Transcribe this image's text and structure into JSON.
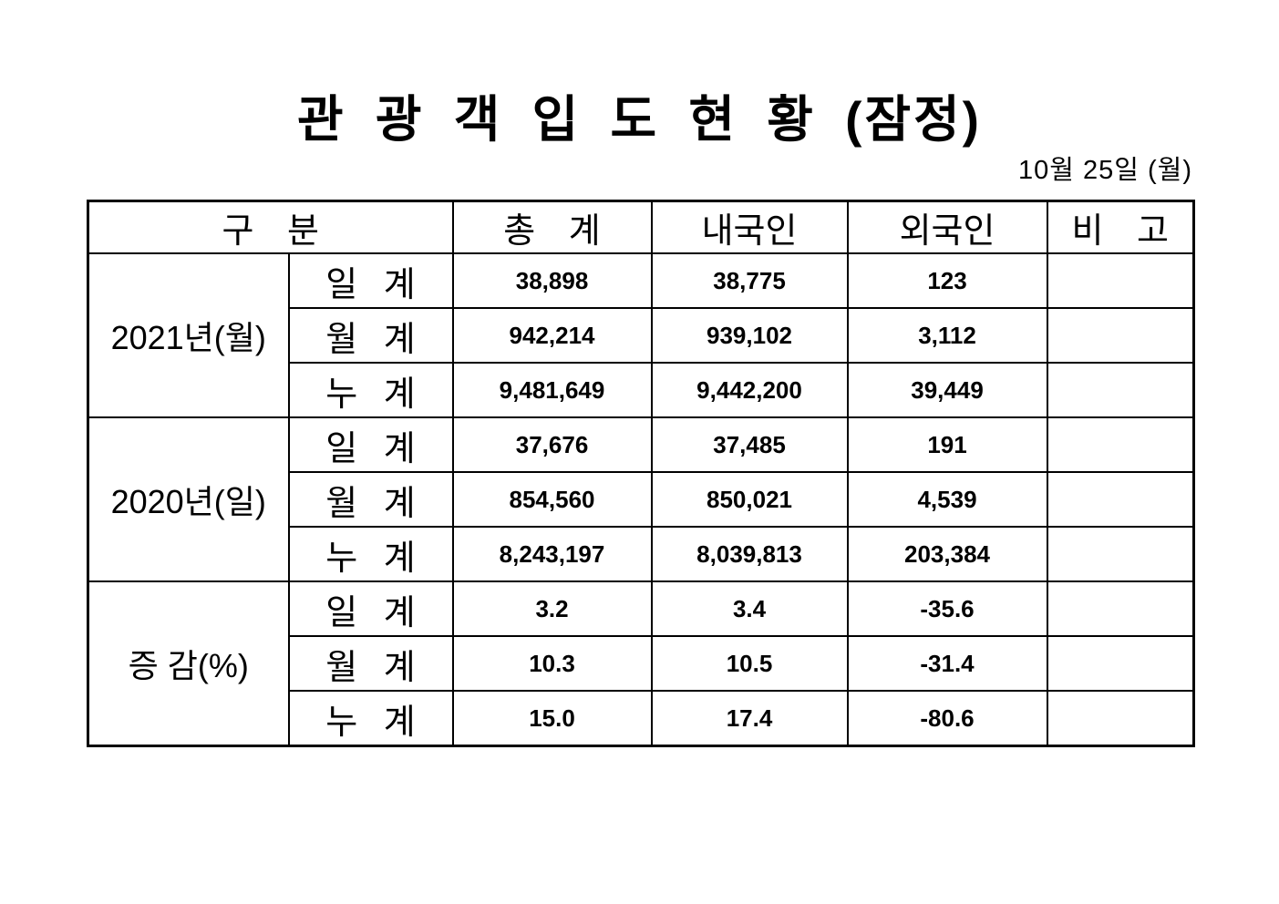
{
  "title": "관 광 객 입 도 현 황 (잠정)",
  "date": "10월 25일 (월)",
  "table": {
    "headers": [
      "구 분",
      "총 계",
      "내국인",
      "외국인",
      "비 고"
    ],
    "groups": [
      {
        "label": "2021년(월)",
        "rows": [
          {
            "label": "일 계",
            "values": [
              "38,898",
              "38,775",
              "123",
              ""
            ]
          },
          {
            "label": "월 계",
            "values": [
              "942,214",
              "939,102",
              "3,112",
              ""
            ]
          },
          {
            "label": "누 계",
            "values": [
              "9,481,649",
              "9,442,200",
              "39,449",
              ""
            ]
          }
        ]
      },
      {
        "label": "2020년(일)",
        "rows": [
          {
            "label": "일 계",
            "values": [
              "37,676",
              "37,485",
              "191",
              ""
            ]
          },
          {
            "label": "월 계",
            "values": [
              "854,560",
              "850,021",
              "4,539",
              ""
            ]
          },
          {
            "label": "누 계",
            "values": [
              "8,243,197",
              "8,039,813",
              "203,384",
              ""
            ]
          }
        ]
      },
      {
        "label": "증 감(%)",
        "rows": [
          {
            "label": "일 계",
            "values": [
              "3.2",
              "3.4",
              "-35.6",
              ""
            ]
          },
          {
            "label": "월 계",
            "values": [
              "10.3",
              "10.5",
              "-31.4",
              ""
            ]
          },
          {
            "label": "누 계",
            "values": [
              "15.0",
              "17.4",
              "-80.6",
              ""
            ]
          }
        ]
      }
    ]
  }
}
